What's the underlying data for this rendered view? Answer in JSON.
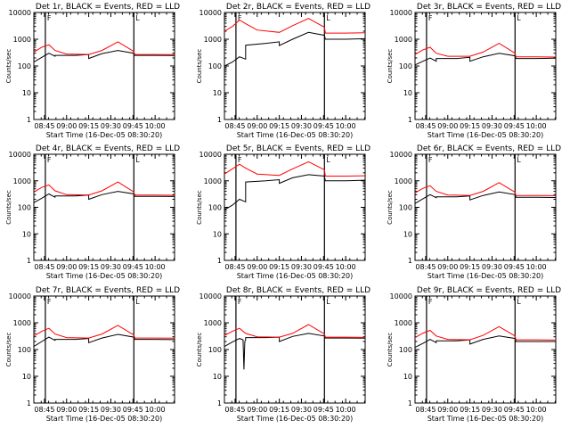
{
  "figure": {
    "xlabel": "Start Time (16-Dec-05 08:30:20)",
    "ylabel": "Counts/sec",
    "colors": {
      "events": "#000000",
      "lld": "#ff0000",
      "axes": "#000000",
      "background": "#ffffff"
    }
  },
  "chart_data": [
    {
      "type": "line",
      "title": "Det 1r, BLACK = Events, RED = LLD",
      "xlabel": "Start Time (16-Dec-05 08:30:20)",
      "ylabel": "Counts/sec",
      "yscale": "log",
      "ylim": [
        1,
        10000
      ],
      "xlim": [
        8.63,
        10.22
      ],
      "xticks": [
        8.75,
        9.0,
        9.25,
        9.5,
        9.75,
        10.0
      ],
      "xtick_labels": [
        "08:45",
        "09:00",
        "09:15",
        "09:30",
        "09:45",
        "10:00"
      ],
      "yticks": [
        1,
        10,
        100,
        1000,
        10000
      ],
      "ytick_labels": [
        "1",
        "10",
        "100",
        "1000",
        "10000"
      ],
      "vlines": [
        8.76,
        9.76
      ],
      "vline_labels": [
        "F",
        "L"
      ],
      "series": [
        {
          "name": "Events",
          "color": "#000000",
          "x": [
            8.63,
            8.72,
            8.8,
            8.87,
            8.87,
            9.1,
            9.25,
            9.25,
            9.4,
            9.58,
            9.76,
            9.77,
            10.0,
            10.22
          ],
          "values": [
            140,
            210,
            300,
            230,
            250,
            250,
            270,
            190,
            290,
            380,
            300,
            250,
            250,
            245
          ]
        },
        {
          "name": "LLD",
          "color": "#ff0000",
          "x": [
            8.63,
            8.72,
            8.8,
            8.87,
            9.0,
            9.25,
            9.4,
            9.58,
            9.76,
            9.77,
            10.0,
            10.22
          ],
          "values": [
            330,
            500,
            620,
            380,
            280,
            270,
            380,
            800,
            350,
            270,
            270,
            265
          ]
        }
      ]
    },
    {
      "type": "line",
      "title": "Det 2r, BLACK = Events, RED = LLD",
      "xlabel": "Start Time (16-Dec-05 08:30:20)",
      "ylabel": "Counts/sec",
      "yscale": "log",
      "ylim": [
        1,
        10000
      ],
      "xlim": [
        8.63,
        10.22
      ],
      "xticks": [
        8.75,
        9.0,
        9.25,
        9.5,
        9.75,
        10.0
      ],
      "xtick_labels": [
        "08:45",
        "09:00",
        "09:15",
        "09:30",
        "09:45",
        "10:00"
      ],
      "yticks": [
        1,
        10,
        100,
        1000,
        10000
      ],
      "ytick_labels": [
        "1",
        "10",
        "100",
        "1000",
        "10000"
      ],
      "vlines": [
        8.76,
        9.76
      ],
      "vline_labels": [
        "F",
        "L"
      ],
      "series": [
        {
          "name": "Events",
          "color": "#000000",
          "x": [
            8.63,
            8.72,
            8.8,
            8.87,
            8.87,
            9.1,
            9.25,
            9.25,
            9.4,
            9.58,
            9.76,
            9.77,
            10.0,
            10.22
          ],
          "values": [
            100,
            140,
            220,
            180,
            600,
            700,
            800,
            580,
            1000,
            1800,
            1400,
            1000,
            1000,
            1050
          ]
        },
        {
          "name": "LLD",
          "color": "#ff0000",
          "x": [
            8.63,
            8.72,
            8.8,
            8.87,
            9.0,
            9.25,
            9.4,
            9.58,
            9.76,
            9.77,
            10.0,
            10.22
          ],
          "values": [
            2000,
            3000,
            5200,
            3800,
            2200,
            1800,
            3200,
            6000,
            2800,
            1700,
            1700,
            1750
          ]
        }
      ]
    },
    {
      "type": "line",
      "title": "Det 3r, BLACK = Events, RED = LLD",
      "xlabel": "Start Time (16-Dec-05 08:30:20)",
      "ylabel": "Counts/sec",
      "yscale": "log",
      "ylim": [
        1,
        10000
      ],
      "xlim": [
        8.63,
        10.22
      ],
      "xticks": [
        8.75,
        9.0,
        9.25,
        9.5,
        9.75,
        10.0
      ],
      "xtick_labels": [
        "08:45",
        "09:00",
        "09:15",
        "09:30",
        "09:45",
        "10:00"
      ],
      "yticks": [
        1,
        10,
        100,
        1000,
        10000
      ],
      "ytick_labels": [
        "1",
        "10",
        "100",
        "1000",
        "10000"
      ],
      "vlines": [
        8.76,
        9.76
      ],
      "vline_labels": [
        "F",
        "L"
      ],
      "series": [
        {
          "name": "Events",
          "color": "#000000",
          "x": [
            8.63,
            8.72,
            8.8,
            8.87,
            8.87,
            9.1,
            9.25,
            9.25,
            9.4,
            9.58,
            9.76,
            9.77,
            10.0,
            10.22
          ],
          "values": [
            110,
            150,
            200,
            150,
            190,
            190,
            210,
            150,
            220,
            300,
            240,
            190,
            190,
            195
          ]
        },
        {
          "name": "LLD",
          "color": "#ff0000",
          "x": [
            8.63,
            8.72,
            8.8,
            8.87,
            9.0,
            9.25,
            9.4,
            9.58,
            9.76,
            9.77,
            10.0,
            10.22
          ],
          "values": [
            270,
            400,
            500,
            300,
            230,
            230,
            330,
            700,
            300,
            220,
            220,
            215
          ]
        }
      ]
    },
    {
      "type": "line",
      "title": "Det 4r, BLACK = Events, RED = LLD",
      "xlabel": "Start Time (16-Dec-05 08:30:20)",
      "ylabel": "Counts/sec",
      "yscale": "log",
      "ylim": [
        1,
        10000
      ],
      "xlim": [
        8.63,
        10.22
      ],
      "xticks": [
        8.75,
        9.0,
        9.25,
        9.5,
        9.75,
        10.0
      ],
      "xtick_labels": [
        "08:45",
        "09:00",
        "09:15",
        "09:30",
        "09:45",
        "10:00"
      ],
      "yticks": [
        1,
        10,
        100,
        1000,
        10000
      ],
      "ytick_labels": [
        "1",
        "10",
        "100",
        "1000",
        "10000"
      ],
      "vlines": [
        8.76,
        9.76
      ],
      "vline_labels": [
        "F",
        "L"
      ],
      "series": [
        {
          "name": "Events",
          "color": "#000000",
          "x": [
            8.63,
            8.72,
            8.8,
            8.87,
            8.87,
            9.1,
            9.25,
            9.25,
            9.4,
            9.58,
            9.76,
            9.77,
            10.0,
            10.22
          ],
          "values": [
            150,
            220,
            320,
            240,
            270,
            270,
            290,
            200,
            300,
            400,
            320,
            260,
            260,
            255
          ]
        },
        {
          "name": "LLD",
          "color": "#ff0000",
          "x": [
            8.63,
            8.72,
            8.8,
            8.87,
            9.0,
            9.25,
            9.4,
            9.58,
            9.76,
            9.77,
            10.0,
            10.22
          ],
          "values": [
            380,
            560,
            700,
            420,
            300,
            290,
            420,
            900,
            380,
            290,
            290,
            285
          ]
        }
      ]
    },
    {
      "type": "line",
      "title": "Det 5r, BLACK = Events, RED = LLD",
      "xlabel": "Start Time (16-Dec-05 08:30:20)",
      "ylabel": "Counts/sec",
      "yscale": "log",
      "ylim": [
        1,
        10000
      ],
      "xlim": [
        8.63,
        10.22
      ],
      "xticks": [
        8.75,
        9.0,
        9.25,
        9.5,
        9.75,
        10.0
      ],
      "xtick_labels": [
        "08:45",
        "09:00",
        "09:15",
        "09:30",
        "09:45",
        "10:00"
      ],
      "yticks": [
        1,
        10,
        100,
        1000,
        10000
      ],
      "ytick_labels": [
        "1",
        "10",
        "100",
        "1000",
        "10000"
      ],
      "vlines": [
        8.76,
        9.76
      ],
      "vline_labels": [
        "F",
        "L"
      ],
      "series": [
        {
          "name": "Events",
          "color": "#000000",
          "x": [
            8.63,
            8.72,
            8.8,
            8.87,
            8.87,
            9.1,
            9.25,
            9.25,
            9.4,
            9.58,
            9.76,
            9.77,
            10.0,
            10.22
          ],
          "values": [
            80,
            120,
            200,
            160,
            900,
            1000,
            1100,
            800,
            1300,
            1700,
            1500,
            1000,
            1000,
            1050
          ]
        },
        {
          "name": "LLD",
          "color": "#ff0000",
          "x": [
            8.63,
            8.72,
            8.8,
            8.87,
            9.0,
            9.25,
            9.4,
            9.58,
            9.76,
            9.77,
            10.0,
            10.22
          ],
          "values": [
            1800,
            2800,
            4200,
            3000,
            1800,
            1600,
            2800,
            5200,
            2600,
            1500,
            1500,
            1550
          ]
        }
      ]
    },
    {
      "type": "line",
      "title": "Det 6r, BLACK = Events, RED = LLD",
      "xlabel": "Start Time (16-Dec-05 08:30:20)",
      "ylabel": "Counts/sec",
      "yscale": "log",
      "ylim": [
        1,
        10000
      ],
      "xlim": [
        8.63,
        10.22
      ],
      "xticks": [
        8.75,
        9.0,
        9.25,
        9.5,
        9.75,
        10.0
      ],
      "xtick_labels": [
        "08:45",
        "09:00",
        "09:15",
        "09:30",
        "09:45",
        "10:00"
      ],
      "yticks": [
        1,
        10,
        100,
        1000,
        10000
      ],
      "ytick_labels": [
        "1",
        "10",
        "100",
        "1000",
        "10000"
      ],
      "vlines": [
        8.76,
        9.76
      ],
      "vline_labels": [
        "F",
        "L"
      ],
      "series": [
        {
          "name": "Events",
          "color": "#000000",
          "x": [
            8.63,
            8.72,
            8.8,
            8.87,
            8.87,
            9.1,
            9.25,
            9.25,
            9.4,
            9.58,
            9.76,
            9.77,
            10.0,
            10.22
          ],
          "values": [
            140,
            210,
            300,
            230,
            250,
            250,
            270,
            190,
            280,
            380,
            300,
            240,
            240,
            235
          ]
        },
        {
          "name": "LLD",
          "color": "#ff0000",
          "x": [
            8.63,
            8.72,
            8.8,
            8.87,
            9.0,
            9.25,
            9.4,
            9.58,
            9.76,
            9.77,
            10.0,
            10.22
          ],
          "values": [
            350,
            520,
            650,
            400,
            290,
            280,
            400,
            850,
            370,
            280,
            280,
            275
          ]
        }
      ]
    },
    {
      "type": "line",
      "title": "Det 7r, BLACK = Events, RED = LLD",
      "xlabel": "Start Time (16-Dec-05 08:30:20)",
      "ylabel": "Counts/sec",
      "yscale": "log",
      "ylim": [
        1,
        10000
      ],
      "xlim": [
        8.63,
        10.22
      ],
      "xticks": [
        8.75,
        9.0,
        9.25,
        9.5,
        9.75,
        10.0
      ],
      "xtick_labels": [
        "08:45",
        "09:00",
        "09:15",
        "09:30",
        "09:45",
        "10:00"
      ],
      "yticks": [
        1,
        10,
        100,
        1000,
        10000
      ],
      "ytick_labels": [
        "1",
        "10",
        "100",
        "1000",
        "10000"
      ],
      "vlines": [
        8.76,
        9.76
      ],
      "vline_labels": [
        "F",
        "L"
      ],
      "series": [
        {
          "name": "Events",
          "color": "#000000",
          "x": [
            8.63,
            8.72,
            8.8,
            8.87,
            8.87,
            9.1,
            9.25,
            9.25,
            9.4,
            9.58,
            9.76,
            9.77,
            10.0,
            10.22
          ],
          "values": [
            130,
            200,
            290,
            220,
            240,
            240,
            260,
            180,
            270,
            370,
            290,
            240,
            240,
            235
          ]
        },
        {
          "name": "LLD",
          "color": "#ff0000",
          "x": [
            8.63,
            8.72,
            8.8,
            8.87,
            9.0,
            9.25,
            9.4,
            9.58,
            9.76,
            9.77,
            10.0,
            10.22
          ],
          "values": [
            320,
            480,
            620,
            380,
            280,
            270,
            380,
            800,
            350,
            270,
            270,
            265
          ]
        }
      ]
    },
    {
      "type": "line",
      "title": "Det 8r, BLACK = Events, RED = LLD",
      "xlabel": "Start Time (16-Dec-05 08:30:20)",
      "ylabel": "Counts/sec",
      "yscale": "log",
      "ylim": [
        1,
        10000
      ],
      "xlim": [
        8.63,
        10.22
      ],
      "xticks": [
        8.75,
        9.0,
        9.25,
        9.5,
        9.75,
        10.0
      ],
      "xtick_labels": [
        "08:45",
        "09:00",
        "09:15",
        "09:30",
        "09:45",
        "10:00"
      ],
      "yticks": [
        1,
        10,
        100,
        1000,
        10000
      ],
      "ytick_labels": [
        "1",
        "10",
        "100",
        "1000",
        "10000"
      ],
      "vlines": [
        8.76,
        9.76
      ],
      "vline_labels": [
        "F",
        "L"
      ],
      "series": [
        {
          "name": "Events",
          "color": "#000000",
          "x": [
            8.63,
            8.72,
            8.8,
            8.84,
            8.85,
            8.86,
            8.87,
            8.87,
            9.1,
            9.25,
            9.25,
            9.4,
            9.58,
            9.76,
            9.77,
            10.0,
            10.22
          ],
          "values": [
            130,
            190,
            260,
            230,
            18,
            200,
            230,
            280,
            280,
            290,
            200,
            310,
            400,
            320,
            270,
            270,
            265
          ]
        },
        {
          "name": "LLD",
          "color": "#ff0000",
          "x": [
            8.63,
            8.72,
            8.8,
            8.87,
            9.0,
            9.25,
            9.4,
            9.58,
            9.76,
            9.77,
            10.0,
            10.22
          ],
          "values": [
            330,
            480,
            620,
            400,
            300,
            290,
            400,
            860,
            380,
            290,
            290,
            285
          ]
        }
      ]
    },
    {
      "type": "line",
      "title": "Det 9r, BLACK = Events, RED = LLD",
      "xlabel": "Start Time (16-Dec-05 08:30:20)",
      "ylabel": "Counts/sec",
      "yscale": "log",
      "ylim": [
        1,
        10000
      ],
      "xlim": [
        8.63,
        10.22
      ],
      "xticks": [
        8.75,
        9.0,
        9.25,
        9.5,
        9.75,
        10.0
      ],
      "xtick_labels": [
        "08:45",
        "09:00",
        "09:15",
        "09:30",
        "09:45",
        "10:00"
      ],
      "yticks": [
        1,
        10,
        100,
        1000,
        10000
      ],
      "ytick_labels": [
        "1",
        "10",
        "100",
        "1000",
        "10000"
      ],
      "vlines": [
        8.76,
        9.76
      ],
      "vline_labels": [
        "F",
        "L"
      ],
      "series": [
        {
          "name": "Events",
          "color": "#000000",
          "x": [
            8.63,
            8.72,
            8.8,
            8.87,
            8.87,
            9.1,
            9.25,
            9.25,
            9.4,
            9.58,
            9.76,
            9.77,
            10.0,
            10.22
          ],
          "values": [
            120,
            170,
            240,
            180,
            210,
            210,
            230,
            160,
            240,
            320,
            260,
            200,
            200,
            200
          ]
        },
        {
          "name": "LLD",
          "color": "#ff0000",
          "x": [
            8.63,
            8.72,
            8.8,
            8.87,
            9.0,
            9.25,
            9.4,
            9.58,
            9.76,
            9.77,
            10.0,
            10.22
          ],
          "values": [
            280,
            410,
            520,
            320,
            240,
            230,
            340,
            720,
            320,
            230,
            230,
            225
          ]
        }
      ]
    }
  ]
}
